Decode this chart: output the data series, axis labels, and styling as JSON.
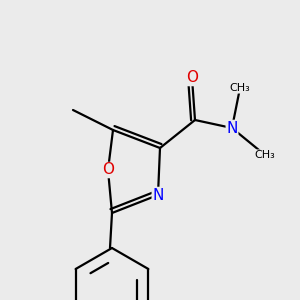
{
  "background_color": "#ebebeb",
  "bond_color": "#000000",
  "atom_colors": {
    "O": "#e00000",
    "N": "#0000ff",
    "C": "#000000"
  },
  "figsize": [
    3.0,
    3.0
  ],
  "dpi": 100,
  "lw": 1.6
}
